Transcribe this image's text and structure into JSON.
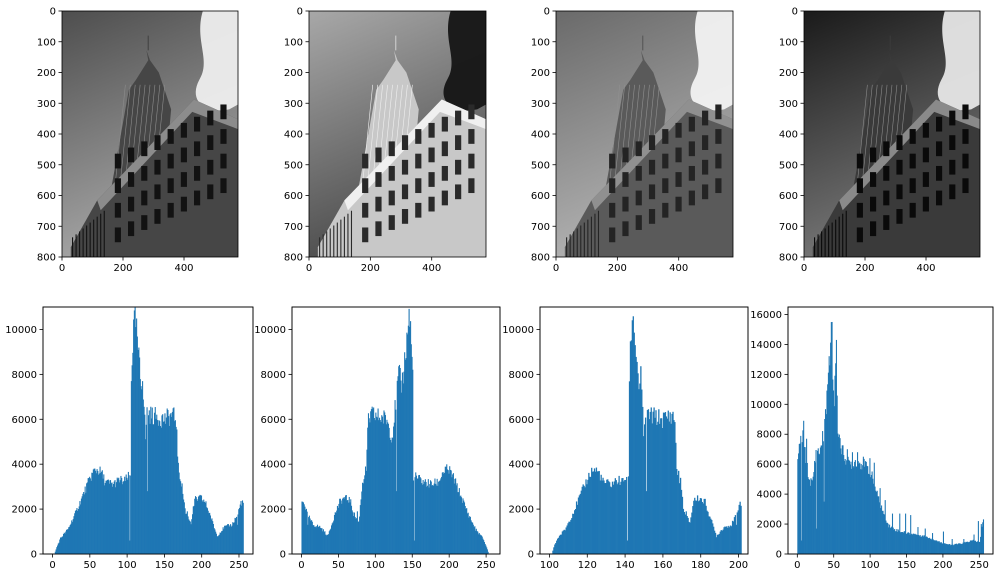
{
  "figure": {
    "background": "#ffffff"
  },
  "chart_data": [
    {
      "type": "image",
      "image_variant": "original",
      "xlim": [
        0,
        577
      ],
      "ylim": [
        800,
        0
      ],
      "xticks": [
        0,
        200,
        400
      ],
      "yticks": [
        0,
        100,
        200,
        300,
        400,
        500,
        600,
        700,
        800
      ],
      "image_width": 577,
      "image_height": 800,
      "colormap": "gray"
    },
    {
      "type": "image",
      "image_variant": "negative",
      "xlim": [
        0,
        577
      ],
      "ylim": [
        800,
        0
      ],
      "xticks": [
        0,
        200,
        400
      ],
      "yticks": [
        0,
        100,
        200,
        300,
        400,
        500,
        600,
        700,
        800
      ],
      "image_width": 577,
      "image_height": 800,
      "colormap": "gray"
    },
    {
      "type": "image",
      "image_variant": "brightened",
      "xlim": [
        0,
        577
      ],
      "ylim": [
        800,
        0
      ],
      "xticks": [
        0,
        200,
        400
      ],
      "yticks": [
        0,
        100,
        200,
        300,
        400,
        500,
        600,
        700,
        800
      ],
      "image_width": 577,
      "image_height": 800,
      "colormap": "gray"
    },
    {
      "type": "image",
      "image_variant": "darkened",
      "xlim": [
        0,
        577
      ],
      "ylim": [
        800,
        0
      ],
      "xticks": [
        0,
        200,
        400
      ],
      "yticks": [
        0,
        100,
        200,
        300,
        400,
        500,
        600,
        700,
        800
      ],
      "image_width": 577,
      "image_height": 800,
      "colormap": "gray"
    },
    {
      "type": "bar",
      "xlim": [
        -12.8,
        268.8
      ],
      "ylim": [
        0,
        11000
      ],
      "xticks": [
        0,
        50,
        100,
        150,
        200,
        250
      ],
      "yticks": [
        0,
        2000,
        4000,
        6000,
        8000,
        10000
      ],
      "bar_color": "#1f77b4",
      "bin_width": 1,
      "anchors": [
        [
          2,
          0
        ],
        [
          5,
          300
        ],
        [
          10,
          700
        ],
        [
          20,
          1100
        ],
        [
          30,
          1800
        ],
        [
          40,
          2600
        ],
        [
          50,
          3400
        ],
        [
          55,
          3700
        ],
        [
          60,
          3750
        ],
        [
          65,
          3600
        ],
        [
          70,
          3200
        ],
        [
          80,
          3100
        ],
        [
          90,
          3300
        ],
        [
          95,
          3200
        ],
        [
          100,
          3400
        ],
        [
          104,
          3500
        ],
        [
          105,
          8000
        ],
        [
          108,
          10000
        ],
        [
          110,
          10700
        ],
        [
          113,
          9500
        ],
        [
          118,
          7500
        ],
        [
          120,
          8000
        ],
        [
          124,
          5200
        ],
        [
          126,
          6300
        ],
        [
          130,
          6200
        ],
        [
          140,
          6100
        ],
        [
          150,
          6000
        ],
        [
          160,
          6200
        ],
        [
          165,
          6000
        ],
        [
          168,
          3800
        ],
        [
          172,
          3200
        ],
        [
          178,
          1800
        ],
        [
          185,
          1400
        ],
        [
          190,
          2400
        ],
        [
          198,
          2500
        ],
        [
          204,
          2300
        ],
        [
          210,
          1800
        ],
        [
          220,
          800
        ],
        [
          230,
          1200
        ],
        [
          240,
          1300
        ],
        [
          248,
          1800
        ],
        [
          252,
          2300
        ],
        [
          255,
          2300
        ]
      ],
      "dips": [
        [
          103,
          600
        ],
        [
          127,
          2800
        ],
        [
          180,
          1900
        ],
        [
          247,
          1300
        ]
      ]
    },
    {
      "type": "bar",
      "xlim": [
        -12.8,
        268.8
      ],
      "ylim": [
        0,
        11000
      ],
      "xticks": [
        0,
        50,
        100,
        150,
        200,
        250
      ],
      "yticks": [
        0,
        2000,
        4000,
        6000,
        8000,
        10000
      ],
      "bar_color": "#1f77b4",
      "bin_width": 1,
      "anchors": [
        [
          0,
          2300
        ],
        [
          3,
          2300
        ],
        [
          7,
          1800
        ],
        [
          15,
          1300
        ],
        [
          25,
          1200
        ],
        [
          35,
          800
        ],
        [
          45,
          1800
        ],
        [
          51,
          2300
        ],
        [
          57,
          2500
        ],
        [
          65,
          2400
        ],
        [
          70,
          1800
        ],
        [
          77,
          1400
        ],
        [
          82,
          3200
        ],
        [
          87,
          3800
        ],
        [
          90,
          6000
        ],
        [
          95,
          6200
        ],
        [
          105,
          6100
        ],
        [
          115,
          6000
        ],
        [
          122,
          5200
        ],
        [
          131,
          8000
        ],
        [
          135,
          7500
        ],
        [
          142,
          9500
        ],
        [
          145,
          10700
        ],
        [
          147,
          10000
        ],
        [
          150,
          8000
        ],
        [
          151,
          3500
        ],
        [
          155,
          3400
        ],
        [
          160,
          3300
        ],
        [
          165,
          3200
        ],
        [
          175,
          3100
        ],
        [
          185,
          3200
        ],
        [
          190,
          3600
        ],
        [
          195,
          3750
        ],
        [
          200,
          3700
        ],
        [
          205,
          3400
        ],
        [
          215,
          2600
        ],
        [
          225,
          1800
        ],
        [
          235,
          1100
        ],
        [
          245,
          700
        ],
        [
          250,
          300
        ],
        [
          253,
          0
        ]
      ],
      "dips": [
        [
          8,
          1300
        ],
        [
          75,
          1900
        ],
        [
          128,
          2800
        ],
        [
          152,
          600
        ]
      ]
    },
    {
      "type": "bar",
      "xlim": [
        95,
        205
      ],
      "ylim": [
        0,
        11000
      ],
      "xticks": [
        100,
        120,
        140,
        160,
        180,
        200
      ],
      "yticks": [
        0,
        2000,
        4000,
        6000,
        8000,
        10000
      ],
      "bar_color": "#1f77b4",
      "bin_width": 0.5,
      "anchors": [
        [
          101,
          0
        ],
        [
          102,
          300
        ],
        [
          104,
          700
        ],
        [
          108,
          1100
        ],
        [
          112,
          1800
        ],
        [
          116,
          2600
        ],
        [
          120,
          3400
        ],
        [
          122,
          3700
        ],
        [
          124,
          3750
        ],
        [
          126,
          3600
        ],
        [
          128,
          3200
        ],
        [
          132,
          3100
        ],
        [
          136,
          3300
        ],
        [
          138,
          3200
        ],
        [
          140,
          3400
        ],
        [
          141.5,
          3500
        ],
        [
          142,
          8000
        ],
        [
          143,
          10000
        ],
        [
          144,
          10700
        ],
        [
          145,
          9500
        ],
        [
          147,
          7500
        ],
        [
          148,
          8000
        ],
        [
          149.5,
          5200
        ],
        [
          150.5,
          6300
        ],
        [
          152,
          6200
        ],
        [
          156,
          6100
        ],
        [
          160,
          6000
        ],
        [
          164,
          6200
        ],
        [
          166,
          6000
        ],
        [
          167,
          3800
        ],
        [
          169,
          3200
        ],
        [
          171,
          1800
        ],
        [
          174,
          1400
        ],
        [
          176,
          2400
        ],
        [
          179,
          2500
        ],
        [
          182,
          2300
        ],
        [
          184,
          1800
        ],
        [
          188,
          800
        ],
        [
          192,
          1200
        ],
        [
          196,
          1300
        ],
        [
          199,
          1800
        ],
        [
          200,
          2300
        ],
        [
          201,
          2300
        ]
      ],
      "dips": [
        [
          141,
          600
        ],
        [
          151,
          2800
        ],
        [
          172,
          1900
        ],
        [
          198.5,
          1300
        ]
      ]
    },
    {
      "type": "bar",
      "xlim": [
        -12.8,
        268.8
      ],
      "ylim": [
        0,
        16500
      ],
      "xticks": [
        0,
        50,
        100,
        150,
        200,
        250
      ],
      "yticks": [
        0,
        2000,
        4000,
        6000,
        8000,
        10000,
        12000,
        14000,
        16000
      ],
      "bar_color": "#1f77b4",
      "bin_width": 1,
      "anchors": [
        [
          0,
          6000
        ],
        [
          3,
          7600
        ],
        [
          7,
          8000
        ],
        [
          10,
          6800
        ],
        [
          15,
          5000
        ],
        [
          20,
          4700
        ],
        [
          25,
          6800
        ],
        [
          30,
          6800
        ],
        [
          35,
          8000
        ],
        [
          40,
          10500
        ],
        [
          43,
          12500
        ],
        [
          46,
          15500
        ],
        [
          48,
          12000
        ],
        [
          50,
          10000
        ],
        [
          52,
          13000
        ],
        [
          55,
          8500
        ],
        [
          60,
          7000
        ],
        [
          70,
          6000
        ],
        [
          80,
          6200
        ],
        [
          90,
          6000
        ],
        [
          100,
          5500
        ],
        [
          110,
          3800
        ],
        [
          118,
          2700
        ],
        [
          125,
          1900
        ],
        [
          135,
          1600
        ],
        [
          150,
          1400
        ],
        [
          165,
          1300
        ],
        [
          180,
          1100
        ],
        [
          195,
          800
        ],
        [
          210,
          600
        ],
        [
          225,
          700
        ],
        [
          240,
          900
        ],
        [
          250,
          800
        ],
        [
          255,
          2400
        ]
      ],
      "dips": [
        [
          5,
          900
        ],
        [
          26,
          1700
        ],
        [
          36,
          3500
        ]
      ],
      "spikes": [
        [
          8,
          8900
        ],
        [
          12,
          7700
        ],
        [
          44,
          12600
        ],
        [
          47,
          15500
        ],
        [
          53,
          14300
        ],
        [
          68,
          7000
        ],
        [
          75,
          6800
        ],
        [
          82,
          6800
        ],
        [
          90,
          6500
        ],
        [
          99,
          6400
        ],
        [
          105,
          6100
        ],
        [
          113,
          4400
        ],
        [
          120,
          3600
        ],
        [
          130,
          2700
        ],
        [
          140,
          2700
        ],
        [
          148,
          2700
        ],
        [
          155,
          2600
        ],
        [
          165,
          1800
        ],
        [
          175,
          1700
        ],
        [
          185,
          1400
        ],
        [
          200,
          1500
        ],
        [
          212,
          1000
        ],
        [
          228,
          1000
        ],
        [
          242,
          1300
        ],
        [
          248,
          2200
        ],
        [
          252,
          2000
        ]
      ]
    }
  ]
}
